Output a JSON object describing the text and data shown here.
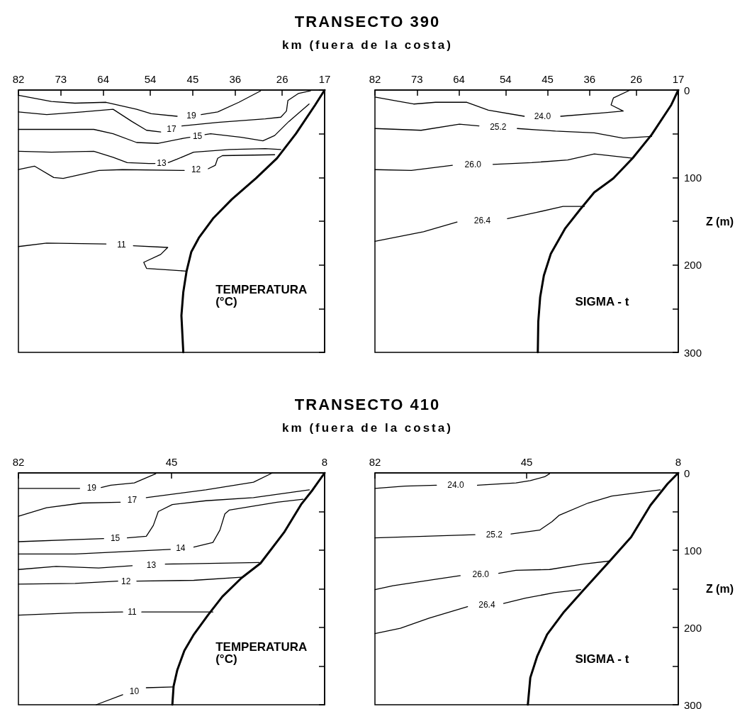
{
  "chart_data": [
    {
      "type": "line",
      "title": "TRANSECTO 390",
      "xlabel": "km (fuera de la costa)",
      "annotations": [
        "TEMPERATURA (°C)"
      ],
      "xlim": [
        82,
        17
      ],
      "xticks": [
        82,
        73,
        64,
        54,
        45,
        36,
        26,
        17
      ],
      "ylim": [
        300,
        0
      ],
      "yticks": [
        0,
        {
          "value": 50,
          "label": null
        },
        100,
        {
          "value": 150,
          "label": null
        },
        200,
        {
          "value": 250,
          "label": null
        },
        300
      ],
      "tick_labels": "x",
      "grid": false,
      "legend": false,
      "series": [
        {
          "name": "19",
          "color": "#000000",
          "x": [
            82,
            75,
            70,
            63.4,
            56.9,
            53.8,
            48.3,
            45.3,
            43.2,
            39.7,
            35.2,
            30.6
          ],
          "values": [
            6,
            13,
            15,
            14,
            22,
            27,
            30,
            null,
            28,
            25,
            14,
            1
          ]
        },
        {
          "name": "17",
          "color": "#000000",
          "x": [
            82,
            76,
            68.5,
            61.9,
            57.9,
            54.8,
            51.8,
            49.5,
            47.3,
            39.7,
            29.6,
            26.3,
            25.1,
            24.8,
            22.6,
            20
          ],
          "values": [
            25,
            28,
            25,
            22,
            36,
            46,
            48,
            null,
            41,
            37,
            33,
            31,
            24,
            12,
            4,
            1
          ]
        },
        {
          "name": "15",
          "color": "#000000",
          "x": [
            82,
            75,
            66,
            61.9,
            56.9,
            52.3,
            46.8,
            45.6,
            44,
            42.4,
            41.2,
            34.7,
            30.1,
            27.6,
            24.6,
            20.3
          ],
          "values": [
            45,
            45,
            45,
            50,
            60,
            61,
            55,
            54,
            null,
            51,
            50,
            54,
            58,
            52,
            36,
            16
          ]
        },
        {
          "name": "13",
          "color": "#000000",
          "x": [
            82,
            75,
            66,
            61.9,
            58.9,
            54.3,
            53,
            51.6,
            50.2,
            48.3,
            44.8,
            37.2,
            29.6,
            26.3
          ],
          "values": [
            70,
            71,
            70,
            77,
            83,
            84,
            84,
            null,
            83,
            79,
            71,
            68,
            67,
            68
          ]
        },
        {
          "name": "12",
          "color": "#000000",
          "x": [
            82,
            78.6,
            74.5,
            72.5,
            64.9,
            59.9,
            46.8,
            44.3,
            41.7,
            40.2,
            39.7,
            38.7,
            27.6
          ],
          "values": [
            91,
            87,
            100,
            101,
            92,
            91,
            92,
            null,
            90,
            86,
            78,
            75,
            74
          ]
        },
        {
          "name": "11",
          "color": "#000000",
          "x": [
            82,
            76,
            63.4,
            60.1,
            57.6,
            50.3,
            51.8,
            55.4,
            54.8,
            46.5
          ],
          "values": [
            179,
            175,
            176,
            null,
            178,
            180,
            188,
            197,
            204,
            207
          ]
        },
        {
          "color": "#000000",
          "x": [
            17,
            19,
            23.1,
            27.1,
            31.6,
            36.7,
            40.7,
            43.7,
            45.3,
            46.3,
            47,
            47.4,
            47
          ],
          "values": [
            0,
            17,
            50,
            78,
            101,
            125,
            147,
            169,
            185,
            207,
            231,
            258,
            300
          ]
        }
      ]
    },
    {
      "type": "line",
      "ylabel": "Z (m)",
      "annotations": [
        "SIGMA - t"
      ],
      "xlim": [
        82,
        17
      ],
      "xticks": [
        82,
        73,
        64,
        54,
        45,
        36,
        26,
        17
      ],
      "ylim": [
        300,
        0
      ],
      "yticks": [
        0,
        {
          "value": 50,
          "label": null
        },
        100,
        {
          "value": 150,
          "label": null
        },
        200,
        {
          "value": 250,
          "label": null
        },
        300
      ],
      "grid": false,
      "legend": false,
      "series": [
        {
          "name": "24.0",
          "color": "#000000",
          "x": [
            82,
            77.8,
            73.7,
            69,
            62.3,
            57.7,
            50,
            46.1,
            42.2,
            33,
            28.8,
            31.4,
            30.9,
            27.3
          ],
          "values": [
            8,
            12,
            16,
            14,
            14,
            23,
            30,
            null,
            30,
            26,
            24,
            17,
            9,
            0
          ]
        },
        {
          "name": "25.2",
          "color": "#000000",
          "x": [
            82,
            72.1,
            63.9,
            59.7,
            55.6,
            51.5,
            43.3,
            35,
            28.8,
            22.7
          ],
          "values": [
            44,
            46,
            39,
            41,
            null,
            44,
            47,
            49,
            55,
            53
          ]
        },
        {
          "name": "26.0",
          "color": "#000000",
          "x": [
            82,
            74.2,
            65.4,
            61,
            56.7,
            48.4,
            40.7,
            35,
            26.8
          ],
          "values": [
            91,
            92,
            86,
            null,
            85,
            83,
            80,
            73,
            78
          ]
        },
        {
          "name": "26.4",
          "color": "#000000",
          "x": [
            82,
            71.6,
            64.4,
            59,
            53.6,
            47.4,
            41.7,
            37.1
          ],
          "values": [
            173,
            162,
            151,
            null,
            147,
            140,
            133,
            133
          ]
        },
        {
          "color": "#000000",
          "x": [
            17,
            18.5,
            22.7,
            26.8,
            30.9,
            35,
            38.1,
            41.2,
            44.3,
            45.8,
            46.6,
            47,
            47.1
          ],
          "values": [
            0,
            17,
            51,
            78,
            101,
            117,
            137,
            158,
            187,
            212,
            237,
            265,
            300
          ]
        }
      ]
    },
    {
      "type": "line",
      "title": "TRANSECTO 410",
      "xlabel": "km (fuera de la costa)",
      "annotations": [
        "TEMPERATURA (°C)"
      ],
      "xlim": [
        82,
        8
      ],
      "xticks": [
        82,
        45,
        8
      ],
      "ylim": [
        300,
        0
      ],
      "yticks": [
        0,
        {
          "value": 50,
          "label": null
        },
        100,
        {
          "value": 150,
          "label": null
        },
        200,
        {
          "value": 250,
          "label": null
        },
        300
      ],
      "tick_labels": "x",
      "grid": false,
      "legend": false,
      "series": [
        {
          "name": "19",
          "color": "#000000",
          "x": [
            82,
            67.2,
            64.3,
            62,
            59.7,
            54,
            48.8
          ],
          "values": [
            20,
            20,
            null,
            19,
            16,
            13,
            1
          ]
        },
        {
          "name": "17",
          "color": "#000000",
          "x": [
            82,
            75.2,
            66.6,
            57.4,
            54.5,
            51.1,
            36.7,
            25.2,
            20.6
          ],
          "values": [
            56,
            45,
            39,
            38,
            null,
            32,
            22,
            12,
            0
          ]
        },
        {
          "name": "15",
          "color": "#000000",
          "x": [
            82,
            61.4,
            58.6,
            55.7,
            51.1,
            49.4,
            48.2,
            44.8,
            36.7,
            25.2,
            11.7
          ],
          "values": [
            89,
            85,
            null,
            84,
            82,
            68,
            50,
            41,
            36,
            32,
            22
          ]
        },
        {
          "name": "14",
          "color": "#000000",
          "x": [
            82,
            68.3,
            56.8,
            45.3,
            42.8,
            39.6,
            35,
            33.3,
            32.1,
            31,
            19.5,
            13.2
          ],
          "values": [
            105,
            105,
            102,
            99,
            null,
            96,
            90,
            74,
            53,
            48,
            38,
            34
          ]
        },
        {
          "name": "13",
          "color": "#000000",
          "x": [
            82,
            72.9,
            62.6,
            54.5,
            49.9,
            46.5,
            23.8
          ],
          "values": [
            125,
            121,
            123,
            120,
            null,
            118,
            116
          ]
        },
        {
          "name": "12",
          "color": "#000000",
          "x": [
            82,
            68.3,
            58,
            56,
            53.4,
            39.6,
            28.1
          ],
          "values": [
            144,
            143,
            140,
            null,
            140,
            139,
            135
          ]
        },
        {
          "name": "11",
          "color": "#000000",
          "x": [
            82,
            68.3,
            56.8,
            54.5,
            52.2,
            35
          ],
          "values": [
            184,
            181,
            180,
            null,
            180,
            180
          ]
        },
        {
          "name": "10",
          "color": "#000000",
          "x": [
            63.2,
            56.8,
            54,
            51.1,
            44.5
          ],
          "values": [
            300,
            287,
            null,
            278,
            277
          ]
        },
        {
          "color": "#000000",
          "x": [
            8,
            10.9,
            13.7,
            17.8,
            23.5,
            28.1,
            32.7,
            36.2,
            39.6,
            41.9,
            43.6,
            44.5,
            44.8
          ],
          "values": [
            0,
            22,
            41,
            77,
            117,
            136,
            160,
            184,
            209,
            230,
            255,
            276,
            300
          ]
        }
      ]
    },
    {
      "type": "line",
      "ylabel": "Z (m)",
      "annotations": [
        "SIGMA - t"
      ],
      "xlim": [
        82,
        8
      ],
      "xticks": [
        82,
        45,
        8
      ],
      "ylim": [
        300,
        0
      ],
      "yticks": [
        0,
        {
          "value": 50,
          "label": null
        },
        100,
        {
          "value": 150,
          "label": null
        },
        200,
        {
          "value": 250,
          "label": null
        },
        300
      ],
      "grid": false,
      "legend": false,
      "series": [
        {
          "name": "24.0",
          "color": "#000000",
          "x": [
            82,
            74.7,
            67,
            62.3,
            57,
            47.6,
            44.1,
            40.6,
            39.4
          ],
          "values": [
            20,
            17,
            16,
            null,
            16,
            13,
            10,
            5,
            1
          ]
        },
        {
          "name": "25.2",
          "color": "#000000",
          "x": [
            82,
            57.6,
            52.9,
            48.8,
            41.8,
            38.8,
            37.1,
            30,
            24.2,
            12.4
          ],
          "values": [
            84,
            80,
            null,
            79,
            74,
            63,
            55,
            39,
            30,
            22
          ]
        },
        {
          "name": "26.0",
          "color": "#000000",
          "x": [
            82,
            77.6,
            67.6,
            61.2,
            56.2,
            51.8,
            47.6,
            39.4,
            31.2,
            24.7
          ],
          "values": [
            151,
            146,
            138,
            133,
            null,
            130,
            126,
            125,
            118,
            114
          ]
        },
        {
          "name": "26.4",
          "color": "#000000",
          "x": [
            82,
            75.8,
            68.8,
            59.4,
            54.7,
            50.6,
            45.3,
            38.2,
            31.8
          ],
          "values": [
            208,
            201,
            188,
            173,
            null,
            169,
            162,
            155,
            151
          ]
        },
        {
          "color": "#000000",
          "x": [
            8,
            10.6,
            14.8,
            19.5,
            24.7,
            31.2,
            35.9,
            40,
            42.4,
            44.1,
            44.7
          ],
          "values": [
            0,
            14,
            42,
            83,
            114,
            152,
            180,
            209,
            237,
            265,
            300
          ]
        }
      ]
    }
  ]
}
